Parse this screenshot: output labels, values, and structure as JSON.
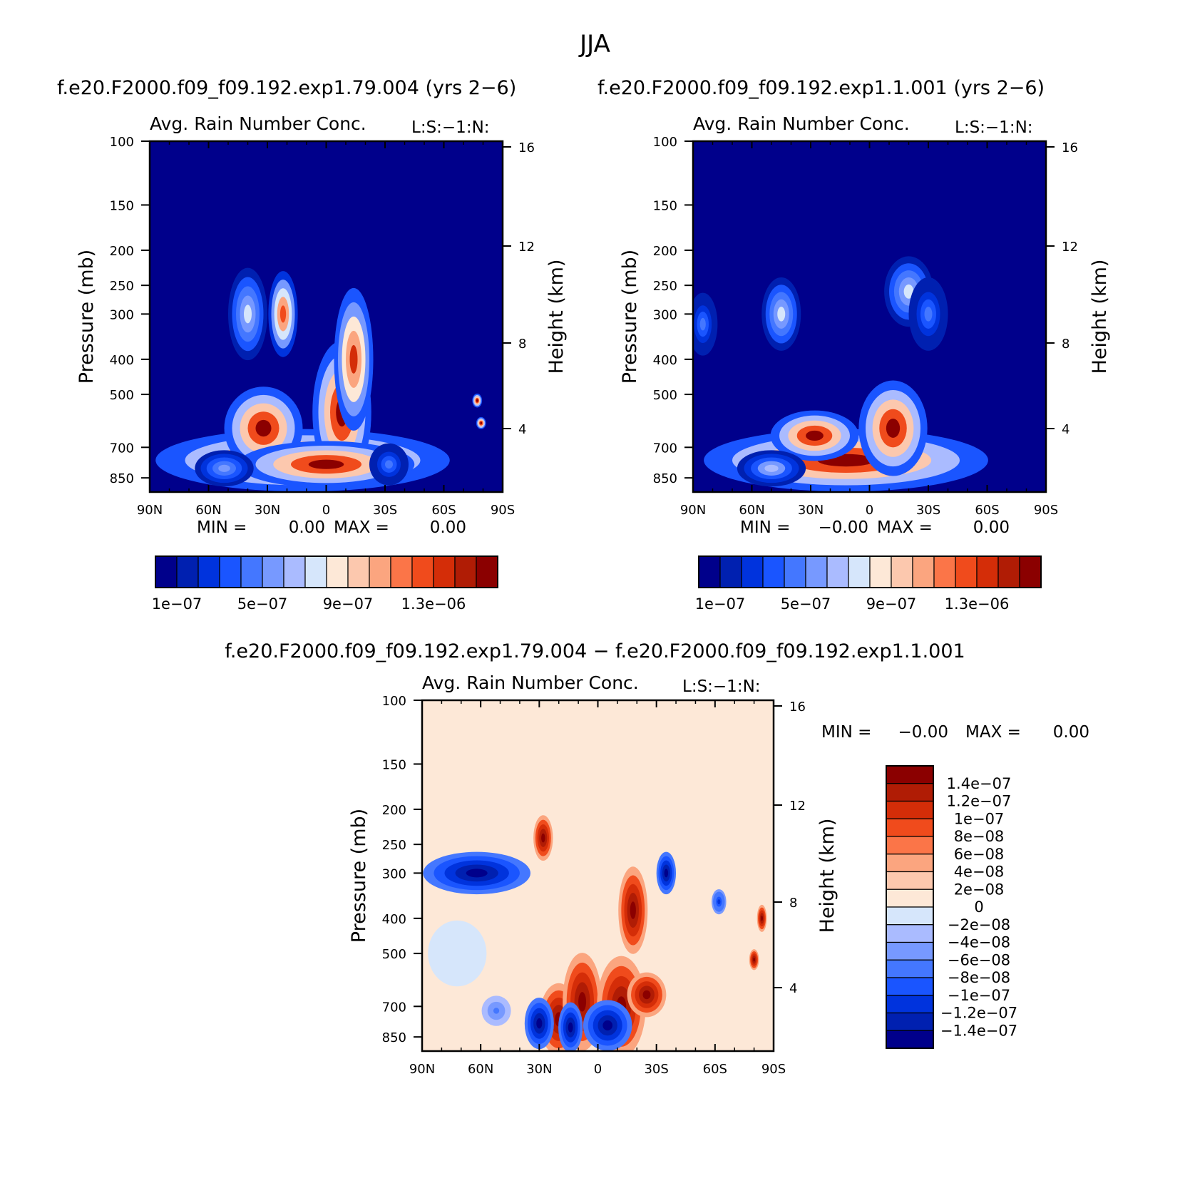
{
  "figure": {
    "season": "JJA",
    "diff_title": "f.e20.F2000.f09_f09.192.exp1.79.004 − f.e20.F2000.f09_f09.192.exp1.1.001"
  },
  "chart_data": [
    {
      "type": "heatmap",
      "run_title": "f.e20.F2000.f09_f09.192.exp1.79.004 (yrs 2−6)",
      "title": "Avg. Rain Number Conc.",
      "subtitle": "L:S:−1:N:",
      "xlabel": "",
      "ylabel": "Pressure (mb)",
      "y2label": "Height (km)",
      "x_ticks": [
        "90N",
        "60N",
        "30N",
        "0",
        "30S",
        "60S",
        "90S"
      ],
      "y_ticks": [
        "100",
        "150",
        "200",
        "250",
        "300",
        "400",
        "500",
        "700",
        "850"
      ],
      "y2_ticks": [
        "16",
        "12",
        "8",
        "4"
      ],
      "stats": {
        "min_label": "MIN =",
        "min": "0.00",
        "max_label": "MAX =",
        "max": "0.00"
      },
      "colorbar": {
        "orientation": "horizontal",
        "tick_labels": [
          "1e−07",
          "5e−07",
          "9e−07",
          "1.3e−06"
        ],
        "colors": [
          "#00008b",
          "#0020b0",
          "#0033dd",
          "#1a55ff",
          "#4477ff",
          "#7799ff",
          "#aabbff",
          "#d6e6fb",
          "#fde8d7",
          "#fcc8ae",
          "#fba57f",
          "#fb7548",
          "#f04b1c",
          "#d42d08",
          "#b01c05",
          "#8b0000"
        ]
      },
      "background_color": "#00008b",
      "blobs": [
        {
          "lat": 12,
          "p": 760,
          "w": 60,
          "h": 260,
          "v": 1.6
        },
        {
          "lat": 32,
          "p": 620,
          "w": 16,
          "h": 280,
          "v": 1.6
        },
        {
          "lat": -8,
          "p": 560,
          "w": 12,
          "h": 420,
          "v": 1.6
        },
        {
          "lat": -14,
          "p": 400,
          "w": 8,
          "h": 300,
          "v": 1.4
        },
        {
          "lat": 0,
          "p": 780,
          "w": 36,
          "h": 200,
          "v": 1.6
        },
        {
          "lat": 22,
          "p": 300,
          "w": 6,
          "h": 140,
          "v": 1.3
        },
        {
          "lat": 40,
          "p": 300,
          "w": 8,
          "h": 150,
          "v": 0.7
        },
        {
          "lat": 52,
          "p": 800,
          "w": 12,
          "h": 160,
          "v": 0.5
        },
        {
          "lat": -32,
          "p": 780,
          "w": 8,
          "h": 180,
          "v": 0.4
        },
        {
          "lat": -77,
          "p": 520,
          "w": 2,
          "h": 40,
          "v": 1.6
        },
        {
          "lat": -79,
          "p": 600,
          "w": 2,
          "h": 40,
          "v": 1.6
        }
      ]
    },
    {
      "type": "heatmap",
      "run_title": "f.e20.F2000.f09_f09.192.exp1.1.001 (yrs 2−6)",
      "title": "Avg. Rain Number Conc.",
      "subtitle": "L:S:−1:N:",
      "xlabel": "",
      "ylabel": "Pressure (mb)",
      "y2label": "Height (km)",
      "x_ticks": [
        "90N",
        "60N",
        "30N",
        "0",
        "30S",
        "60S",
        "90S"
      ],
      "y_ticks": [
        "100",
        "150",
        "200",
        "250",
        "300",
        "400",
        "500",
        "700",
        "850"
      ],
      "y2_ticks": [
        "16",
        "12",
        "8",
        "4"
      ],
      "stats": {
        "min_label": "MIN =",
        "min": "−0.00",
        "max_label": "MAX =",
        "max": "0.00"
      },
      "colorbar": {
        "orientation": "horizontal",
        "tick_labels": [
          "1e−07",
          "5e−07",
          "9e−07",
          "1.3e−06"
        ],
        "colors": [
          "#00008b",
          "#0020b0",
          "#0033dd",
          "#1a55ff",
          "#4477ff",
          "#7799ff",
          "#aabbff",
          "#d6e6fb",
          "#fde8d7",
          "#fcc8ae",
          "#fba57f",
          "#fb7548",
          "#f04b1c",
          "#d42d08",
          "#b01c05",
          "#8b0000"
        ]
      },
      "background_color": "#00008b",
      "blobs": [
        {
          "lat": 12,
          "p": 760,
          "w": 58,
          "h": 260,
          "v": 1.6
        },
        {
          "lat": -12,
          "p": 620,
          "w": 14,
          "h": 320,
          "v": 1.6
        },
        {
          "lat": 28,
          "p": 650,
          "w": 18,
          "h": 180,
          "v": 1.6
        },
        {
          "lat": 50,
          "p": 800,
          "w": 14,
          "h": 160,
          "v": 0.6
        },
        {
          "lat": 45,
          "p": 300,
          "w": 8,
          "h": 120,
          "v": 0.7
        },
        {
          "lat": -20,
          "p": 260,
          "w": 10,
          "h": 100,
          "v": 0.7
        },
        {
          "lat": 85,
          "p": 320,
          "w": 6,
          "h": 110,
          "v": 0.4
        },
        {
          "lat": -30,
          "p": 300,
          "w": 8,
          "h": 120,
          "v": 0.4
        }
      ]
    },
    {
      "type": "heatmap",
      "run_title": "",
      "title": "Avg. Rain Number Conc.",
      "subtitle": "L:S:−1:N:",
      "xlabel": "",
      "ylabel": "Pressure (mb)",
      "y2label": "Height (km)",
      "x_ticks": [
        "90N",
        "60N",
        "30N",
        "0",
        "30S",
        "60S",
        "90S"
      ],
      "y_ticks": [
        "100",
        "150",
        "200",
        "250",
        "300",
        "400",
        "500",
        "700",
        "850"
      ],
      "y2_ticks": [
        "16",
        "12",
        "8",
        "4"
      ],
      "stats": {
        "min_label": "MIN =",
        "min": "−0.00",
        "max_label": "MAX =",
        "max": "0.00"
      },
      "colorbar": {
        "orientation": "vertical",
        "tick_labels": [
          "1.4e−07",
          "1.2e−07",
          "1e−07",
          "8e−08",
          "6e−08",
          "4e−08",
          "2e−08",
          "0",
          "−2e−08",
          "−4e−08",
          "−6e−08",
          "−8e−08",
          "−1e−07",
          "−1.2e−07",
          "−1.4e−07"
        ],
        "colors": [
          "#8b0000",
          "#b01c05",
          "#d42d08",
          "#f04b1c",
          "#fb7548",
          "#fba57f",
          "#fcc8ae",
          "#fde8d7",
          "#d6e6fb",
          "#aabbff",
          "#7799ff",
          "#4477ff",
          "#1a55ff",
          "#0033dd",
          "#0020b0",
          "#00008b"
        ]
      },
      "background_color": "#fde8d7",
      "blobs": [
        {
          "lat": 20,
          "p": 760,
          "w": 8,
          "h": 300,
          "v": 1.6
        },
        {
          "lat": 8,
          "p": 680,
          "w": 8,
          "h": 360,
          "v": 1.6
        },
        {
          "lat": -12,
          "p": 700,
          "w": 10,
          "h": 380,
          "v": 1.6
        },
        {
          "lat": -18,
          "p": 380,
          "w": 6,
          "h": 180,
          "v": 1.6
        },
        {
          "lat": -25,
          "p": 650,
          "w": 8,
          "h": 160,
          "v": 1.6
        },
        {
          "lat": 14,
          "p": 800,
          "w": 5,
          "h": 220,
          "v": -1.6
        },
        {
          "lat": 30,
          "p": 780,
          "w": 6,
          "h": 220,
          "v": -1.6
        },
        {
          "lat": -5,
          "p": 790,
          "w": 10,
          "h": 220,
          "v": -1.6
        },
        {
          "lat": 62,
          "p": 300,
          "w": 22,
          "h": 70,
          "v": -1.6
        },
        {
          "lat": -35,
          "p": 300,
          "w": 4,
          "h": 70,
          "v": -1.6
        },
        {
          "lat": 28,
          "p": 240,
          "w": 4,
          "h": 60,
          "v": 1.6
        },
        {
          "lat": -62,
          "p": 360,
          "w": 3,
          "h": 50,
          "v": -1.2
        },
        {
          "lat": 72,
          "p": 500,
          "w": 12,
          "h": 180,
          "v": -0.15
        },
        {
          "lat": -80,
          "p": 520,
          "w": 2,
          "h": 60,
          "v": 1.6
        },
        {
          "lat": -84,
          "p": 400,
          "w": 2,
          "h": 60,
          "v": 1.6
        },
        {
          "lat": 52,
          "p": 720,
          "w": 6,
          "h": 120,
          "v": -0.7
        }
      ]
    }
  ]
}
